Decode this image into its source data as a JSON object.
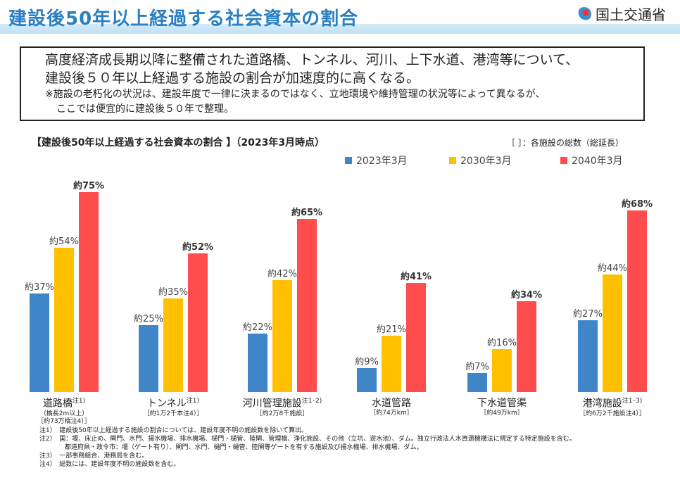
{
  "header": {
    "title": "建設後50年以上経過する社会資本の割合",
    "logo_text": "国土交通省"
  },
  "summary": {
    "line1": "高度経済成長期以降に整備された道路橋、トンネル、河川、上下水道、港湾等について、",
    "line2": "建設後５０年以上経過する施設の割合が加速度的に高くなる。",
    "note1": "※施設の老朽化の状況は、建設年度で一律に決まるのではなく、立地環境や維持管理の状況等によって異なるが、",
    "note2": "ここでは便宜的に建設後５０年で整理。"
  },
  "chart_data": {
    "type": "bar",
    "title": "【建設後50年以上経過する社会資本の割合 】（2023年3月時点）",
    "legend_note": "［ ］：各施設の総数（総延長）",
    "ylim": [
      0,
      80
    ],
    "categories": [
      "道路橋",
      "トンネル",
      "河川管理施設",
      "水道管路",
      "下水道管渠",
      "港湾施設"
    ],
    "category_notes": [
      "注1)",
      "注1)",
      "注1･2)",
      "",
      "",
      "注1･3)"
    ],
    "category_subs": [
      [
        "（橋長2m以上）",
        "［約73万橋注4）］"
      ],
      [
        "［約1万2千本注4）］"
      ],
      [
        "［約2万8千施設］"
      ],
      [
        "［約74万km］"
      ],
      [
        "［約49万km］"
      ],
      [
        "［約6万2千施設注4）］"
      ]
    ],
    "series": [
      {
        "name": "2023年3月",
        "color": "#3f86c8",
        "values": [
          37,
          25,
          22,
          9,
          7,
          27
        ],
        "labels": [
          "約37%",
          "約25%",
          "約22%",
          "約9%",
          "約7%",
          "約27%"
        ]
      },
      {
        "name": "2030年3月",
        "color": "#ffc000",
        "values": [
          54,
          35,
          42,
          21,
          16,
          44
        ],
        "labels": [
          "約54%",
          "約35%",
          "約42%",
          "約21%",
          "約16%",
          "約44%"
        ]
      },
      {
        "name": "2040年3月",
        "color": "#ff4d4d",
        "values": [
          75,
          52,
          65,
          41,
          34,
          68
        ],
        "labels": [
          "約75%",
          "約52%",
          "約65%",
          "約41%",
          "約34%",
          "約68%"
        ]
      }
    ]
  },
  "footnotes": [
    "注1）　建設後50年以上経過する施設の割合については、建設年度不明の施設数を除いて算出。",
    "注2）　国：堰、床止め、閘門、水門、揚水機場、排水機場、樋門・樋管、陸閘、管理橋、浄化施設、その他（立坑、遊水池）、ダム。独立行政法人水資源機構法に規定する特定施設を含む。",
    "　　　　都道府県・政令市：堰（ゲート有り）、閘門、水門、樋門・樋管、陸閘等ゲートを有する施設及び揚水機場、排水機場、ダム。",
    "注3）　一部事務組合、港務局を含む。",
    "注4）　総数には、建設年度不明の施設数を含む。"
  ]
}
